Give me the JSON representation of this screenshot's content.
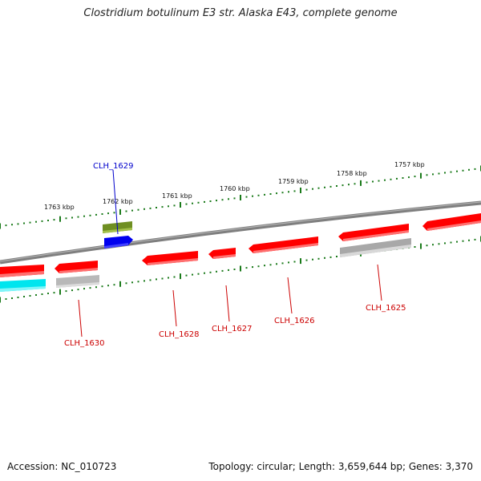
{
  "title": "Clostridium botulinum E3 str. Alaska E43, complete genome",
  "footer": {
    "accession": "Accession: NC_010723",
    "stats": "Topology: circular; Length: 3,659,644 bp; Genes: 3,370"
  },
  "scale_labels": [
    "1763 kbp",
    "1762 kbp",
    "1761 kbp",
    "1760 kbp",
    "1759 kbp",
    "1758 kbp",
    "1757 kbp"
  ],
  "gene_labels": {
    "top": [
      "CLH_1629"
    ],
    "bottom": [
      "CLH_1630",
      "CLH_1628",
      "CLH_1627",
      "CLH_1626",
      "CLH_1625"
    ]
  },
  "colors": {
    "backbone": "#808080",
    "forward_gene": "#7a9a2a",
    "forward_gene_blue": "#0000ee",
    "reverse_gene": "#ff0000",
    "reverse_gene_cyan": "#00e5ee",
    "reverse_gene_grey": "#b8b8b8",
    "tick": "#1a7a1a",
    "label_top": "#0000cc",
    "label_bottom": "#cc0000"
  }
}
